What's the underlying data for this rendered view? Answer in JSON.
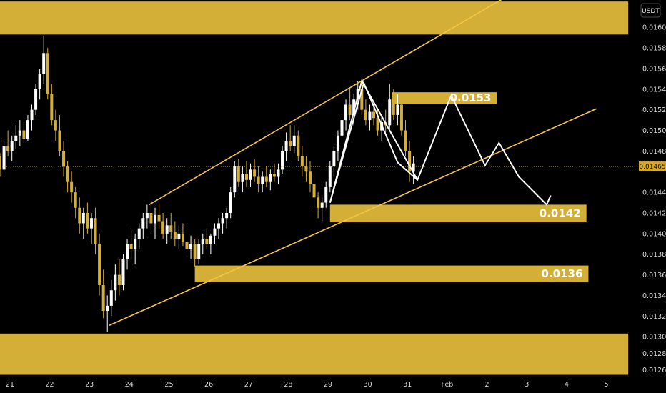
{
  "chart_data": {
    "type": "candlestick",
    "symbol_unit": "USDT",
    "current_price": "0.01465",
    "y_ticks": [
      "0.01600",
      "0.01580",
      "0.01560",
      "0.01540",
      "0.01520",
      "0.01500",
      "0.01480",
      "0.01440",
      "0.01420",
      "0.01400",
      "0.01380",
      "0.01360",
      "0.01340",
      "0.01320",
      "0.01300",
      "0.01284",
      "0.01268"
    ],
    "y_tick_values": [
      0.016,
      0.0158,
      0.0156,
      0.0154,
      0.0152,
      0.015,
      0.0148,
      0.0144,
      0.0142,
      0.014,
      0.0138,
      0.0136,
      0.0134,
      0.0132,
      0.013,
      0.01284,
      0.01268
    ],
    "x_ticks": [
      "21",
      "22",
      "23",
      "24",
      "25",
      "26",
      "27",
      "28",
      "29",
      "30",
      "31",
      "Feb",
      "2",
      "3",
      "4",
      "5"
    ],
    "x_tick_days": [
      21,
      22,
      23,
      24,
      25,
      26,
      27,
      28,
      29,
      30,
      31,
      32,
      33,
      34,
      35,
      36
    ],
    "xlim": [
      20.75,
      36.8
    ],
    "ylim": [
      0.01262,
      0.016265
    ],
    "zones": [
      {
        "name": "top-zone",
        "y_from": 0.01593,
        "y_to": 0.01625,
        "x_from": 20.75,
        "x_to": 36.55,
        "label": ""
      },
      {
        "name": "zone-0153",
        "y_from": 0.01526,
        "y_to": 0.01537,
        "x_from": 30.6,
        "x_to": 33.25,
        "label": "0.0153"
      },
      {
        "name": "zone-0142",
        "y_from": 0.01411,
        "y_to": 0.01428,
        "x_from": 29.05,
        "x_to": 35.5,
        "label": "0.0142"
      },
      {
        "name": "zone-0136",
        "y_from": 0.01353,
        "y_to": 0.01369,
        "x_from": 25.65,
        "x_to": 35.55,
        "label": "0.0136"
      },
      {
        "name": "bottom-zone",
        "y_from": 0.01263,
        "y_to": 0.01303,
        "x_from": 20.75,
        "x_to": 36.55,
        "label": ""
      }
    ],
    "channel_lines": [
      {
        "from": [
          24.5,
          0.01428
        ],
        "to": [
          33.5,
          0.0163
        ]
      },
      {
        "from": [
          23.5,
          0.01311
        ],
        "to": [
          35.75,
          0.01521
        ]
      }
    ],
    "projection_path": [
      [
        29.05,
        0.0143
      ],
      [
        29.9,
        0.01546
      ],
      [
        30.75,
        0.01469
      ],
      [
        31.25,
        0.01452
      ],
      [
        32.1,
        0.01534
      ],
      [
        32.95,
        0.01466
      ],
      [
        33.3,
        0.01488
      ],
      [
        33.8,
        0.01455
      ],
      [
        34.5,
        0.01428
      ],
      [
        34.6,
        0.01437
      ]
    ],
    "pattern_path": [
      [
        29.05,
        0.0143
      ],
      [
        29.85,
        0.01548
      ],
      [
        31.25,
        0.01452
      ]
    ],
    "ohlc": [
      [
        20.75,
        0.01475,
        0.01478,
        0.01455,
        0.01462
      ],
      [
        20.85,
        0.01462,
        0.0149,
        0.0146,
        0.01485
      ],
      [
        20.95,
        0.01485,
        0.015,
        0.01475,
        0.0148
      ],
      [
        21.05,
        0.0148,
        0.01495,
        0.0147,
        0.0149
      ],
      [
        21.15,
        0.0149,
        0.01505,
        0.01482,
        0.01495
      ],
      [
        21.25,
        0.01495,
        0.0151,
        0.01485,
        0.015
      ],
      [
        21.35,
        0.015,
        0.01508,
        0.01488,
        0.01492
      ],
      [
        21.45,
        0.01492,
        0.01515,
        0.0149,
        0.0151
      ],
      [
        21.55,
        0.0151,
        0.01525,
        0.015,
        0.0152
      ],
      [
        21.65,
        0.0152,
        0.01545,
        0.01515,
        0.0154
      ],
      [
        21.75,
        0.0154,
        0.0156,
        0.0153,
        0.01555
      ],
      [
        21.85,
        0.01555,
        0.01592,
        0.01545,
        0.01575
      ],
      [
        21.95,
        0.01575,
        0.0158,
        0.0153,
        0.01535
      ],
      [
        22.05,
        0.01535,
        0.01545,
        0.01505,
        0.0151
      ],
      [
        22.15,
        0.0151,
        0.0152,
        0.0149,
        0.015
      ],
      [
        22.25,
        0.015,
        0.01515,
        0.01475,
        0.0148
      ],
      [
        22.35,
        0.0148,
        0.0149,
        0.01455,
        0.01465
      ],
      [
        22.45,
        0.01465,
        0.0147,
        0.0144,
        0.0145
      ],
      [
        22.55,
        0.0145,
        0.0146,
        0.0143,
        0.0144
      ],
      [
        22.65,
        0.0144,
        0.01445,
        0.01415,
        0.01425
      ],
      [
        22.75,
        0.01425,
        0.01435,
        0.014,
        0.0141
      ],
      [
        22.85,
        0.0141,
        0.01425,
        0.01395,
        0.0142
      ],
      [
        22.95,
        0.0142,
        0.0143,
        0.014,
        0.01405
      ],
      [
        23.05,
        0.01405,
        0.0142,
        0.0139,
        0.01415
      ],
      [
        23.15,
        0.01415,
        0.01425,
        0.0138,
        0.0139
      ],
      [
        23.25,
        0.0139,
        0.014,
        0.0134,
        0.0135
      ],
      [
        23.35,
        0.0135,
        0.01365,
        0.01318,
        0.01325
      ],
      [
        23.45,
        0.01325,
        0.0134,
        0.01305,
        0.0133
      ],
      [
        23.55,
        0.0133,
        0.01355,
        0.0132,
        0.01345
      ],
      [
        23.65,
        0.01345,
        0.0137,
        0.01335,
        0.0136
      ],
      [
        23.75,
        0.0136,
        0.01375,
        0.0134,
        0.0135
      ],
      [
        23.85,
        0.0135,
        0.0138,
        0.01345,
        0.01375
      ],
      [
        23.95,
        0.01375,
        0.01395,
        0.01365,
        0.0139
      ],
      [
        24.05,
        0.0139,
        0.01405,
        0.01375,
        0.01385
      ],
      [
        24.15,
        0.01385,
        0.014,
        0.0137,
        0.01395
      ],
      [
        24.25,
        0.01395,
        0.0141,
        0.01385,
        0.01405
      ],
      [
        24.35,
        0.01405,
        0.0142,
        0.01395,
        0.01415
      ],
      [
        24.45,
        0.01415,
        0.01428,
        0.01405,
        0.0142
      ],
      [
        24.55,
        0.0142,
        0.0143,
        0.014,
        0.0141
      ],
      [
        24.65,
        0.0141,
        0.01425,
        0.01395,
        0.01418
      ],
      [
        24.75,
        0.01418,
        0.0143,
        0.01405,
        0.01412
      ],
      [
        24.85,
        0.01412,
        0.0142,
        0.01395,
        0.014
      ],
      [
        24.95,
        0.014,
        0.01415,
        0.0139,
        0.01408
      ],
      [
        25.05,
        0.01408,
        0.0142,
        0.01395,
        0.01402
      ],
      [
        25.15,
        0.01402,
        0.01412,
        0.01388,
        0.01395
      ],
      [
        25.25,
        0.01395,
        0.01408,
        0.01385,
        0.014
      ],
      [
        25.35,
        0.014,
        0.0141,
        0.01388,
        0.01392
      ],
      [
        25.45,
        0.01392,
        0.01405,
        0.0138,
        0.01385
      ],
      [
        25.55,
        0.01385,
        0.01398,
        0.01375,
        0.0139
      ],
      [
        25.65,
        0.0139,
        0.01395,
        0.01368,
        0.01375
      ],
      [
        25.75,
        0.01375,
        0.01395,
        0.0137,
        0.0139
      ],
      [
        25.85,
        0.0139,
        0.014,
        0.0138,
        0.01395
      ],
      [
        25.95,
        0.01395,
        0.01405,
        0.01385,
        0.0139
      ],
      [
        26.05,
        0.0139,
        0.014,
        0.0138,
        0.01398
      ],
      [
        26.15,
        0.01398,
        0.0141,
        0.0139,
        0.01405
      ],
      [
        26.25,
        0.01405,
        0.01415,
        0.01395,
        0.0141
      ],
      [
        26.35,
        0.0141,
        0.0142,
        0.014,
        0.01415
      ],
      [
        26.45,
        0.01415,
        0.01425,
        0.01405,
        0.0142
      ],
      [
        26.55,
        0.0142,
        0.01445,
        0.01415,
        0.0144
      ],
      [
        26.65,
        0.0144,
        0.0147,
        0.01435,
        0.01465
      ],
      [
        26.75,
        0.01465,
        0.01472,
        0.01445,
        0.0145
      ],
      [
        26.85,
        0.0145,
        0.01465,
        0.0144,
        0.01458
      ],
      [
        26.95,
        0.01458,
        0.0147,
        0.01445,
        0.01452
      ],
      [
        27.05,
        0.01452,
        0.01468,
        0.01445,
        0.01462
      ],
      [
        27.15,
        0.01462,
        0.01472,
        0.0145,
        0.01455
      ],
      [
        27.25,
        0.01455,
        0.01465,
        0.0144,
        0.01448
      ],
      [
        27.35,
        0.01448,
        0.0146,
        0.0144,
        0.01455
      ],
      [
        27.45,
        0.01455,
        0.01465,
        0.01445,
        0.0145
      ],
      [
        27.55,
        0.0145,
        0.01462,
        0.01442,
        0.01458
      ],
      [
        27.65,
        0.01458,
        0.01468,
        0.0145,
        0.01455
      ],
      [
        27.75,
        0.01455,
        0.01468,
        0.01448,
        0.01462
      ],
      [
        27.85,
        0.01462,
        0.01485,
        0.01458,
        0.0148
      ],
      [
        27.95,
        0.0148,
        0.01498,
        0.0147,
        0.0149
      ],
      [
        28.05,
        0.0149,
        0.01505,
        0.0148,
        0.01485
      ],
      [
        28.15,
        0.01485,
        0.01505,
        0.01478,
        0.01495
      ],
      [
        28.25,
        0.01495,
        0.015,
        0.0147,
        0.01475
      ],
      [
        28.35,
        0.01475,
        0.01485,
        0.01455,
        0.01465
      ],
      [
        28.45,
        0.01465,
        0.01475,
        0.0145,
        0.0146
      ],
      [
        28.55,
        0.0146,
        0.0147,
        0.0144,
        0.01448
      ],
      [
        28.65,
        0.01448,
        0.01455,
        0.01425,
        0.01435
      ],
      [
        28.75,
        0.01435,
        0.0144,
        0.01415,
        0.01425
      ],
      [
        28.85,
        0.01425,
        0.01435,
        0.01412,
        0.0143
      ],
      [
        28.95,
        0.0143,
        0.0145,
        0.01425,
        0.01445
      ],
      [
        29.05,
        0.01445,
        0.0147,
        0.0144,
        0.01465
      ],
      [
        29.15,
        0.01465,
        0.01485,
        0.01455,
        0.0148
      ],
      [
        29.25,
        0.0148,
        0.015,
        0.0147,
        0.01495
      ],
      [
        29.35,
        0.01495,
        0.01515,
        0.01485,
        0.0151
      ],
      [
        29.45,
        0.0151,
        0.0153,
        0.015,
        0.01525
      ],
      [
        29.55,
        0.01525,
        0.0154,
        0.0151,
        0.01515
      ],
      [
        29.65,
        0.01515,
        0.01535,
        0.01505,
        0.0153
      ],
      [
        29.75,
        0.0153,
        0.01548,
        0.0152,
        0.0154
      ],
      [
        29.85,
        0.0154,
        0.01545,
        0.01515,
        0.0152
      ],
      [
        29.95,
        0.0152,
        0.0153,
        0.01505,
        0.0151
      ],
      [
        30.05,
        0.0151,
        0.01525,
        0.015,
        0.01518
      ],
      [
        30.15,
        0.01518,
        0.01528,
        0.01505,
        0.01512
      ],
      [
        30.25,
        0.01512,
        0.0152,
        0.01495,
        0.015
      ],
      [
        30.35,
        0.015,
        0.01515,
        0.0149,
        0.01508
      ],
      [
        30.45,
        0.01508,
        0.0152,
        0.01498,
        0.01505
      ],
      [
        30.55,
        0.01505,
        0.01545,
        0.015,
        0.0153
      ],
      [
        30.65,
        0.0153,
        0.0154,
        0.0151,
        0.01515
      ],
      [
        30.75,
        0.01515,
        0.01535,
        0.01505,
        0.01525
      ],
      [
        30.85,
        0.01525,
        0.01535,
        0.01495,
        0.015
      ],
      [
        30.95,
        0.015,
        0.0151,
        0.01475,
        0.0148
      ],
      [
        31.05,
        0.0148,
        0.0149,
        0.0145,
        0.0146
      ],
      [
        31.15,
        0.0146,
        0.01475,
        0.01448,
        0.01468
      ]
    ]
  }
}
